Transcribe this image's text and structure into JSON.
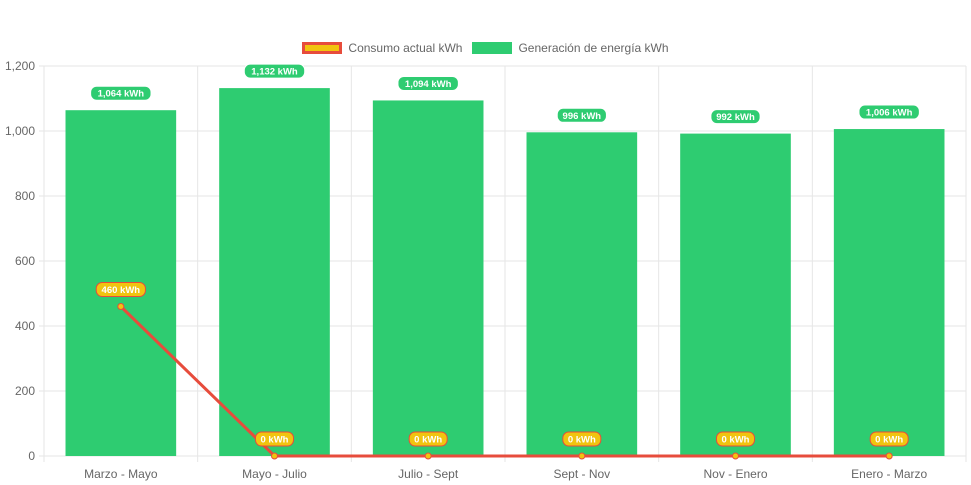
{
  "colors": {
    "generation": "#2ecc71",
    "consumption_line": "#e74c3c",
    "consumption_point": "#f1c40f",
    "grid": "#e6e6e6",
    "axis_text": "#666666"
  },
  "legend": {
    "consumption_label": "Consumo actual kWh",
    "generation_label": "Generación de energía kWh"
  },
  "chart_data": {
    "type": "bar",
    "categories": [
      "Marzo - Mayo",
      "Mayo - Julio",
      "Julio - Sept",
      "Sept - Nov",
      "Nov - Enero",
      "Enero - Marzo"
    ],
    "series": [
      {
        "name": "Generación de energía kWh",
        "type": "bar",
        "values": [
          1064,
          1132,
          1094,
          996,
          992,
          1006
        ],
        "labels": [
          "1,064 kWh",
          "1,132 kWh",
          "1,094 kWh",
          "996 kWh",
          "992 kWh",
          "1,006 kWh"
        ]
      },
      {
        "name": "Consumo actual kWh",
        "type": "line",
        "values": [
          460,
          0,
          0,
          0,
          0,
          0
        ],
        "labels": [
          "460 kWh",
          "0 kWh",
          "0 kWh",
          "0 kWh",
          "0 kWh",
          "0 kWh"
        ]
      }
    ],
    "ylim": [
      0,
      1200
    ],
    "yticks": [
      0,
      200,
      400,
      600,
      800,
      1000,
      1200
    ],
    "ytick_labels": [
      "0",
      "200",
      "400",
      "600",
      "800",
      "1,000",
      "1,200"
    ],
    "grid": true,
    "legend_position": "top"
  }
}
